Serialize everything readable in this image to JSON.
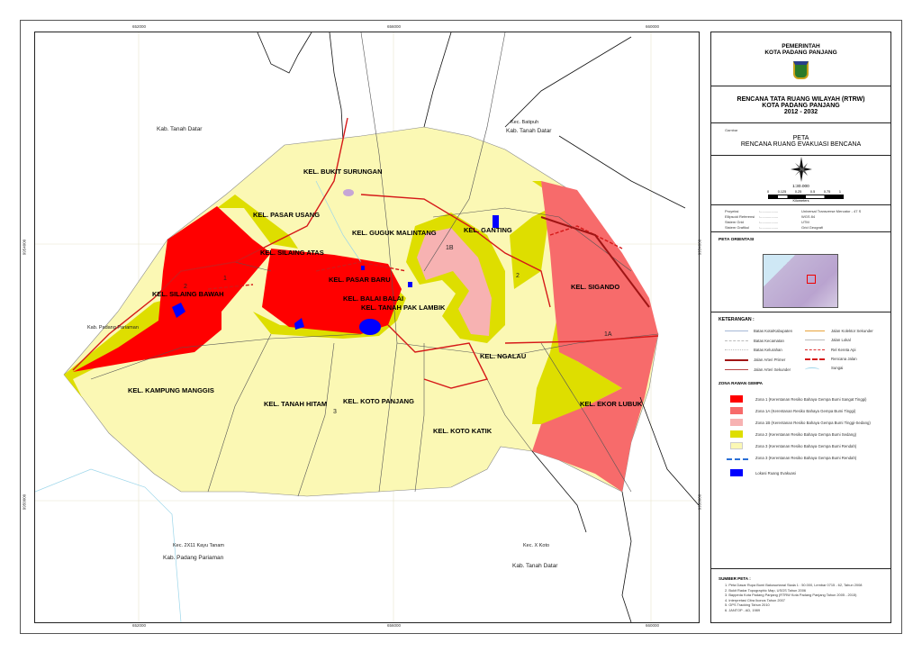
{
  "header": {
    "gov_line1": "PEMERINTAH",
    "gov_line2": "KOTA PADANG PANJANG",
    "plan_line1": "RENCANA TATA RUANG WILAYAH (RTRW)",
    "plan_line2": "KOTA PADANG PANJANG",
    "plan_years": "2012 - 2032",
    "gambar_label": "Gambar",
    "map_type": "PETA",
    "map_title": "RENCANA RUANG EVAKUASI BENCANA"
  },
  "scale": {
    "ratio": "1:30.000",
    "ticks": [
      "0",
      "0.125",
      "0.25",
      "0.5",
      "0.75",
      "1"
    ],
    "unit": "Kilometers"
  },
  "projection": [
    {
      "label": "Proyeksi",
      "value": "Universal Transverse Mercator - 47 S"
    },
    {
      "label": "Ellipsoid Referensi",
      "value": "WGS 84"
    },
    {
      "label": "Sistem Grid",
      "value": "UTM"
    },
    {
      "label": "Sistem Grafikul",
      "value": "Grid Geografi"
    }
  ],
  "orientation_title": "PETA ORIENTASI",
  "legend": {
    "title": "KETERANGAN :",
    "lines_left": [
      "Batas Kota/Kabupaten",
      "Batas Kecamatan",
      "Batas Kelurahan",
      "Jalan Arteri Primer",
      "Jalan Arteri Sekunder"
    ],
    "lines_right": [
      "Jalan Kolektor Sekunder",
      "Jalan Lokal",
      "Rel Kereta Api",
      "Rencana Jalan",
      "Sungai"
    ],
    "zone_title": "ZONA RAWAN GEMPA",
    "zones": [
      {
        "label": "Zona 1 (Kerentanan Resiko Bahaya Gempa Bumi Sangat Tinggi)",
        "color": "#ff0000"
      },
      {
        "label": "Zona 1A (Kerentanan Resiko Bahaya Gempa Bumi Tinggi)",
        "color": "#f76b6b"
      },
      {
        "label": "Zona 1B (Kerentanan Resiko Bahaya Gempa Bumi Tinggi-Sedang)",
        "color": "#f7b2b2"
      },
      {
        "label": "Zona 2 (Kerentanan Resiko Bahaya Gempa Bumi Sedang)",
        "color": "#dede00"
      },
      {
        "label": "Zona 3 (Kerentanan Resiko Bahaya Gempa Bumi Rendah)",
        "color": "#fbf8b4"
      },
      {
        "label": "Zona 3 (Kerentanan Resiko Bahaya Gempa Bumi Rendah)",
        "color": "#2a6fd6"
      }
    ],
    "evac": {
      "label": "Lokasi Ruang Evakuasi",
      "color": "#0000ff"
    }
  },
  "sources": {
    "title": "SUMBER PETA :",
    "items": [
      "1. Peta Dasar Rupa Bumi Bakosurtanal Skala 1 : 50.000, Lembar 0715 - 62, Tahun 2008",
      "2. Bukit Radar Topographic Map, USGS Tahun 2006",
      "3. Bappeda Kota Padang Panjang (RTRW Kota Padang Panjang Tahun 2005 - 2015)",
      "4. Interpretasi Citra Ikonos Tahun 2007",
      "5. GPS Tracking Tahun 2010",
      "6. JANTOP - AD, 1989"
    ]
  },
  "map": {
    "grid_x": [
      "652000",
      "656000",
      "660000"
    ],
    "grid_y": [
      "9954000",
      "9950000"
    ],
    "kelurahan": [
      "KEL. BUKIT SURUNGAN",
      "KEL. PASAR USANG",
      "KEL. GUGUK MALINTANG",
      "KEL. GANTING",
      "KEL. SILAING ATAS",
      "KEL. PASAR BARU",
      "KEL. SILAING BAWAH",
      "KEL. BALAI BALAI",
      "KEL. TANAH PAK LAMBIK",
      "KEL. SIGANDO",
      "KEL. NGALAU",
      "KEL. KAMPUNG MANGGIS",
      "KEL. TANAH HITAM",
      "KEL. KOTO PANJANG",
      "KEL. EKOR LUBUK",
      "KEL. KOTO KATIK"
    ],
    "regions": [
      "Kab. Tanah Datar",
      "Kab. Tanah Datar",
      "Kab. Padang Pariaman",
      "Kab. Tanah Datar",
      "Kab. Padang Pariaman"
    ],
    "kecamatan": [
      "Kec. Batipuh",
      "Kec. 2X11 Kayu Tanam",
      "Kec. X Koto"
    ],
    "zone_marks": [
      "1B",
      "2",
      "1A",
      "2",
      "1",
      "3"
    ]
  }
}
